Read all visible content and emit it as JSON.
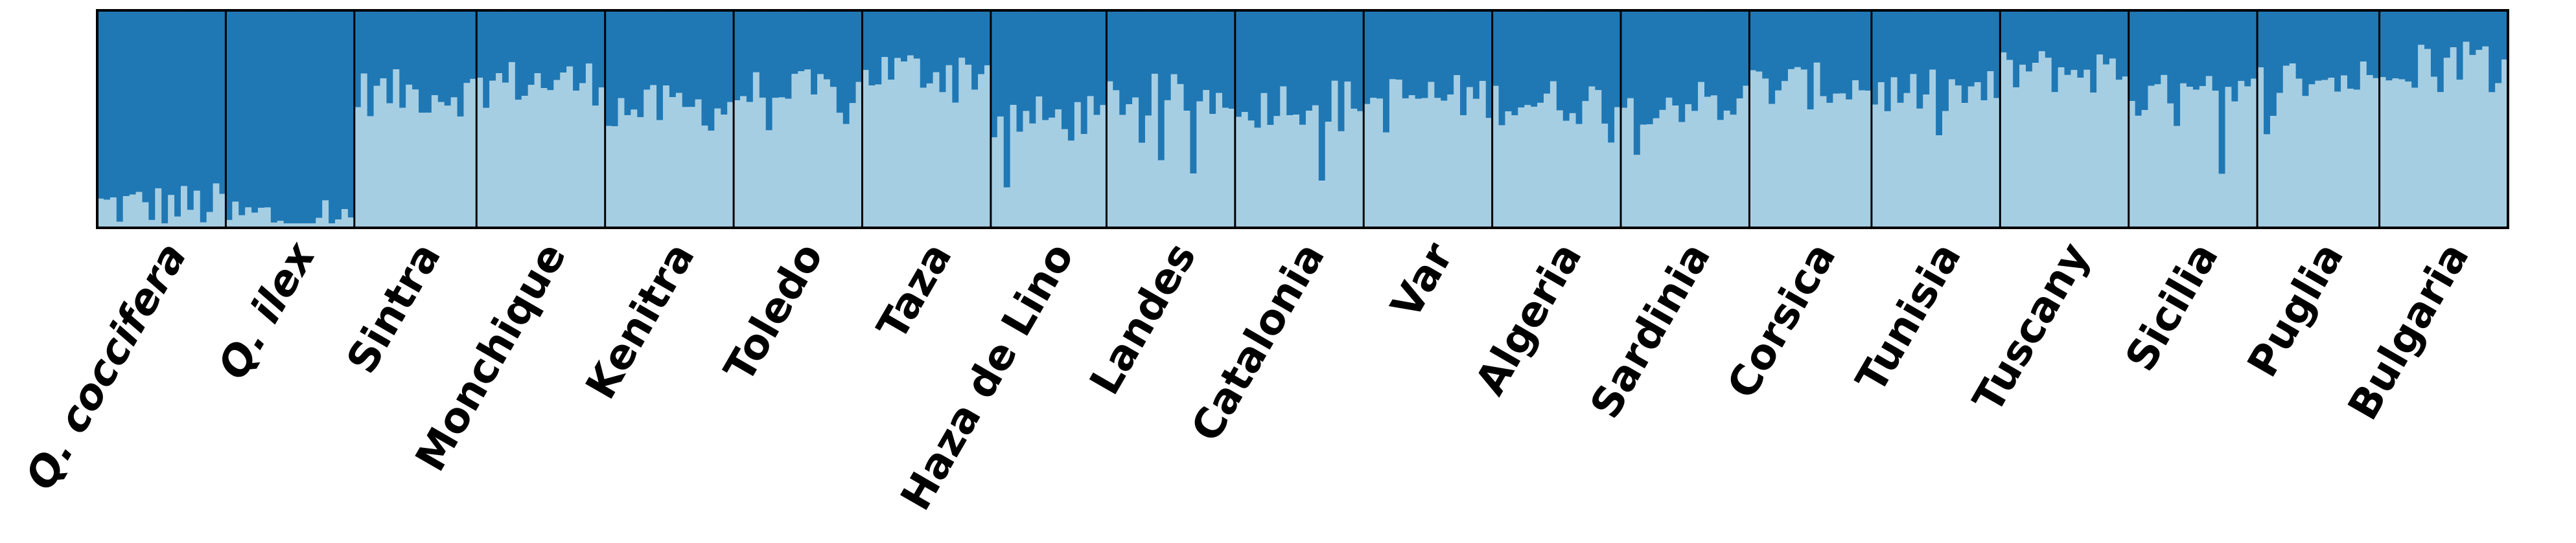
{
  "chart_data": {
    "type": "bar",
    "subtype": "stacked-admixture",
    "title": "",
    "xlabel": "",
    "ylabel": "",
    "ylim": [
      0,
      1
    ],
    "grid": false,
    "legend": "none",
    "colors": {
      "cluster_1": "#a6cee3",
      "cluster_2": "#1f78b4"
    },
    "populations": [
      {
        "name": "Q. coccifera",
        "italic": true,
        "individuals": 20,
        "cluster_1_mean": 0.1
      },
      {
        "name": "Q. ilex",
        "italic": true,
        "individuals": 20,
        "cluster_1_mean": 0.05
      },
      {
        "name": "Sintra",
        "italic": false,
        "individuals": 19,
        "cluster_1_mean": 0.62
      },
      {
        "name": "Monchique",
        "italic": false,
        "individuals": 20,
        "cluster_1_mean": 0.67
      },
      {
        "name": "Kenitra",
        "italic": false,
        "individuals": 20,
        "cluster_1_mean": 0.55
      },
      {
        "name": "Toledo",
        "italic": false,
        "individuals": 20,
        "cluster_1_mean": 0.62
      },
      {
        "name": "Taza",
        "italic": false,
        "individuals": 20,
        "cluster_1_mean": 0.72
      },
      {
        "name": "Haza de Lino",
        "italic": false,
        "individuals": 18,
        "cluster_1_mean": 0.5
      },
      {
        "name": "Landes",
        "italic": false,
        "individuals": 20,
        "cluster_1_mean": 0.6
      },
      {
        "name": "Catalonia",
        "italic": false,
        "individuals": 20,
        "cluster_1_mean": 0.58
      },
      {
        "name": "Var",
        "italic": false,
        "individuals": 20,
        "cluster_1_mean": 0.6
      },
      {
        "name": "Algeria",
        "italic": false,
        "individuals": 20,
        "cluster_1_mean": 0.58
      },
      {
        "name": "Sardinia",
        "italic": false,
        "individuals": 20,
        "cluster_1_mean": 0.58
      },
      {
        "name": "Corsica",
        "italic": false,
        "individuals": 19,
        "cluster_1_mean": 0.65
      },
      {
        "name": "Tunisia",
        "italic": false,
        "individuals": 20,
        "cluster_1_mean": 0.62
      },
      {
        "name": "Tuscany",
        "italic": false,
        "individuals": 20,
        "cluster_1_mean": 0.72
      },
      {
        "name": "Sicilia",
        "italic": false,
        "individuals": 20,
        "cluster_1_mean": 0.6
      },
      {
        "name": "Puglia",
        "italic": false,
        "individuals": 19,
        "cluster_1_mean": 0.68
      },
      {
        "name": "Bulgaria",
        "italic": false,
        "individuals": 20,
        "cluster_1_mean": 0.78
      }
    ]
  }
}
